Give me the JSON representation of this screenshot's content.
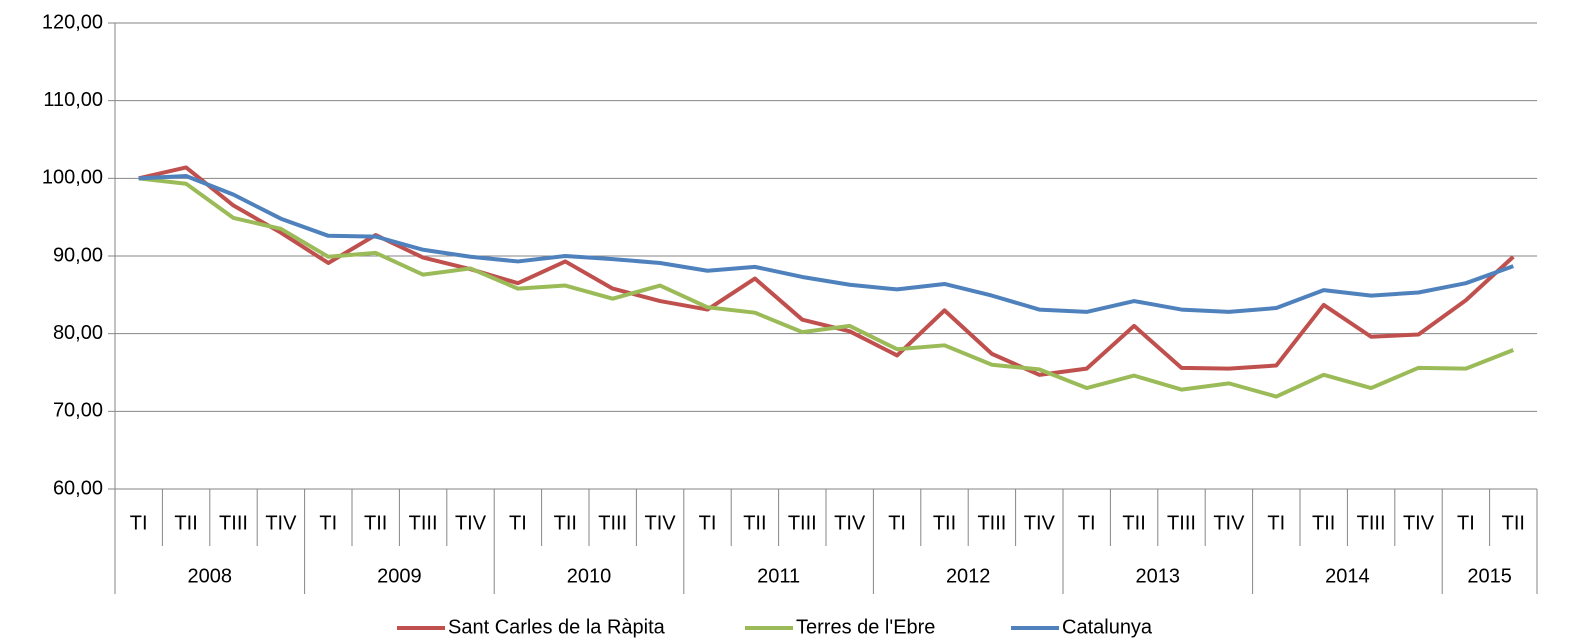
{
  "chart_data": {
    "type": "line",
    "groups": [
      {
        "name": "2008",
        "categories": [
          "TI",
          "TII",
          "TIII",
          "TIV"
        ]
      },
      {
        "name": "2009",
        "categories": [
          "TI",
          "TII",
          "TIII",
          "TIV"
        ]
      },
      {
        "name": "2010",
        "categories": [
          "TI",
          "TII",
          "TIII",
          "TIV"
        ]
      },
      {
        "name": "2011",
        "categories": [
          "TI",
          "TII",
          "TIII",
          "TIV"
        ]
      },
      {
        "name": "2012",
        "categories": [
          "TI",
          "TII",
          "TIII",
          "TIV"
        ]
      },
      {
        "name": "2013",
        "categories": [
          "TI",
          "TII",
          "TIII",
          "TIV"
        ]
      },
      {
        "name": "2014",
        "categories": [
          "TI",
          "TII",
          "TIII",
          "TIV"
        ]
      },
      {
        "name": "2015",
        "categories": [
          "TI",
          "TII"
        ]
      }
    ],
    "series": [
      {
        "name": "Sant Carles de la Ràpita",
        "color": "#c0504d",
        "values": [
          100,
          101.4,
          96.5,
          93,
          89.1,
          92.7,
          89.8,
          88.3,
          86.5,
          89.3,
          85.8,
          84.2,
          83.1,
          87.1,
          81.8,
          80.3,
          77.2,
          83.0,
          77.4,
          74.7,
          75.5,
          81.0,
          75.6,
          75.5,
          75.9,
          83.7,
          79.6,
          79.9,
          84.3,
          89.9
        ]
      },
      {
        "name": "Terres de l'Ebre",
        "color": "#9bbb59",
        "values": [
          100,
          99.3,
          94.9,
          93.5,
          89.9,
          90.4,
          87.6,
          88.4,
          85.8,
          86.2,
          84.5,
          86.2,
          83.4,
          82.7,
          80.2,
          81.0,
          78.0,
          78.5,
          76.0,
          75.4,
          73.0,
          74.6,
          72.8,
          73.6,
          71.9,
          74.7,
          73.0,
          75.6,
          75.5,
          77.9
        ]
      },
      {
        "name": "Catalunya",
        "color": "#4f81bd",
        "values": [
          100,
          100.3,
          97.9,
          94.8,
          92.6,
          92.5,
          90.8,
          89.9,
          89.3,
          90.0,
          89.6,
          89.1,
          88.1,
          88.6,
          87.3,
          86.3,
          85.7,
          86.4,
          84.9,
          83.1,
          82.8,
          84.2,
          83.1,
          82.8,
          83.3,
          85.6,
          84.9,
          85.3,
          86.5,
          88.7
        ]
      }
    ],
    "ylim": [
      60,
      120
    ],
    "yticks": [
      {
        "value": 60,
        "label": "60,00"
      },
      {
        "value": 70,
        "label": "70,00"
      },
      {
        "value": 80,
        "label": "80,00"
      },
      {
        "value": 90,
        "label": "90,00"
      },
      {
        "value": 100,
        "label": "100,00"
      },
      {
        "value": 110,
        "label": "110,00"
      },
      {
        "value": 120,
        "label": "120,00"
      }
    ],
    "grid": true,
    "legend": "bottom"
  }
}
